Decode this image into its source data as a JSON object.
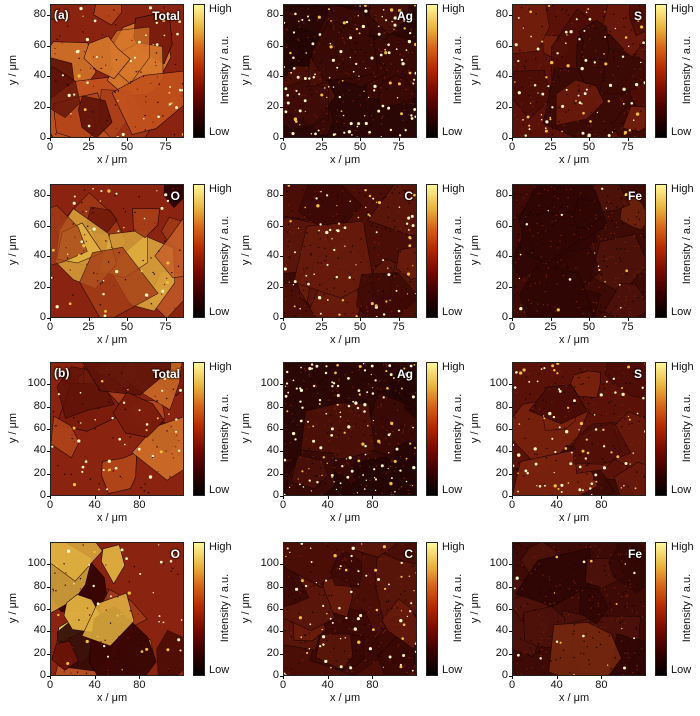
{
  "colorbar": {
    "high": "High",
    "low": "Low",
    "title": "Intensity / a.u."
  },
  "axes": {
    "x_label": "x / μm",
    "y_label": "y / μm"
  },
  "set_a": {
    "letter": "(a)",
    "x_ticks": [
      "0",
      "25",
      "50",
      "75"
    ],
    "y_ticks": [
      "0",
      "20",
      "40",
      "60",
      "80"
    ],
    "panels": [
      "Total",
      "Ag",
      "S",
      "O",
      "C",
      "Fe"
    ]
  },
  "set_b": {
    "letter": "(b)",
    "x_ticks": [
      "0",
      "40",
      "80"
    ],
    "y_ticks": [
      "0",
      "20",
      "40",
      "60",
      "80",
      "100"
    ],
    "panels": [
      "Total",
      "Ag",
      "S",
      "O",
      "C",
      "Fe"
    ]
  },
  "colors": {
    "low": "#000000",
    "mid": "#b52a00",
    "high": "#fff79a"
  }
}
